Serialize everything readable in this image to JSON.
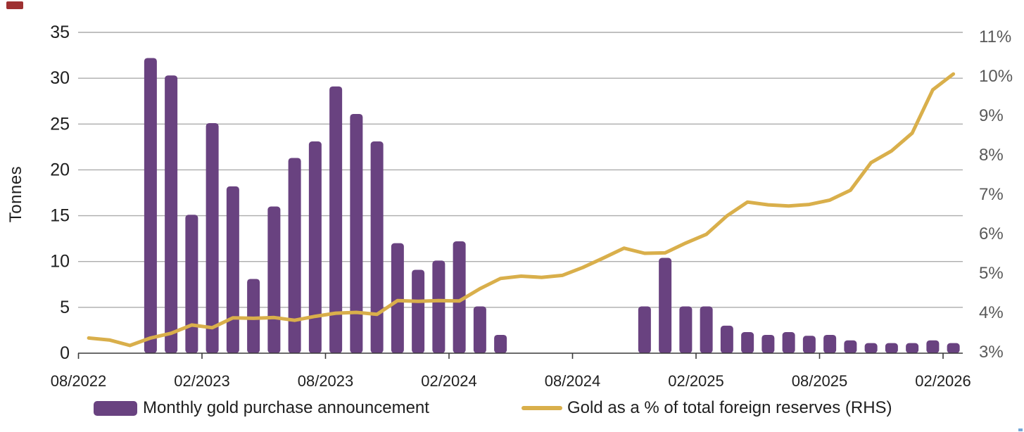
{
  "axes": {
    "left_title": "Tonnes"
  },
  "legend": {
    "bar_label": "Monthly gold purchase announcement",
    "line_label": "Gold as a % of total foreign reserves (RHS)"
  },
  "colors": {
    "bar": "#694280",
    "line": "#D9AF4B",
    "grid": "#ACACAC",
    "axis_line": "#3A3A3A",
    "x_label": "#1f1f1f",
    "left_label": "#1f1f1f",
    "right_label": "#595959",
    "top_left_mark": "#9E3132",
    "corner_artifact": "#74A7D8",
    "background": "#ffffff"
  },
  "chart_data": {
    "type": "combo",
    "subtypes": [
      "bar",
      "line"
    ],
    "grid": "horizontal",
    "legend_position": "bottom",
    "x_axis": {
      "unit": "month",
      "range": [
        "08/2022",
        "02/2026"
      ],
      "tick_labels": [
        "08/2022",
        "02/2023",
        "08/2023",
        "02/2024",
        "08/2024",
        "02/2025",
        "08/2025",
        "02/2026"
      ]
    },
    "left_axis": {
      "title": "Tonnes",
      "min": 0,
      "max": 35,
      "tick_step": 5,
      "tick_labels": [
        "0",
        "5",
        "10",
        "15",
        "20",
        "25",
        "30",
        "35"
      ]
    },
    "right_axis": {
      "unit": "percent",
      "min": 3,
      "max": 11,
      "tick_step": 1,
      "tick_labels": [
        "3%",
        "4%",
        "5%",
        "6%",
        "7%",
        "8%",
        "9%",
        "10%",
        "11%"
      ]
    },
    "series": [
      {
        "name": "Monthly gold purchase announcement",
        "type": "bar",
        "axis": "left",
        "unit": "tonnes",
        "color": "#694280",
        "points": [
          [
            "11/2022",
            32.2
          ],
          [
            "12/2022",
            30.3
          ],
          [
            "01/2023",
            15.1
          ],
          [
            "02/2023",
            25.1
          ],
          [
            "03/2023",
            18.2
          ],
          [
            "04/2023",
            8.1
          ],
          [
            "05/2023",
            16.0
          ],
          [
            "06/2023",
            21.3
          ],
          [
            "07/2023",
            23.1
          ],
          [
            "08/2023",
            29.1
          ],
          [
            "09/2023",
            26.1
          ],
          [
            "10/2023",
            23.1
          ],
          [
            "11/2023",
            12.0
          ],
          [
            "12/2023",
            9.1
          ],
          [
            "01/2024",
            10.1
          ],
          [
            "02/2024",
            12.2
          ],
          [
            "03/2024",
            5.1
          ],
          [
            "04/2024",
            2.0
          ],
          [
            "11/2024",
            5.1
          ],
          [
            "12/2024",
            10.4
          ],
          [
            "01/2025",
            5.1
          ],
          [
            "02/2025",
            5.1
          ],
          [
            "03/2025",
            3.0
          ],
          [
            "04/2025",
            2.3
          ],
          [
            "05/2025",
            2.0
          ],
          [
            "06/2025",
            2.3
          ],
          [
            "07/2025",
            1.9
          ],
          [
            "08/2025",
            2.0
          ],
          [
            "09/2025",
            1.4
          ],
          [
            "10/2025",
            1.1
          ],
          [
            "11/2025",
            1.1
          ],
          [
            "12/2025",
            1.1
          ],
          [
            "01/2026",
            1.4
          ],
          [
            "02/2026",
            1.1
          ]
        ]
      },
      {
        "name": "Gold as a % of total foreign reserves (RHS)",
        "type": "line",
        "axis": "right",
        "unit": "percent",
        "color": "#D9AF4B",
        "points": [
          [
            "08/2022",
            3.35
          ],
          [
            "09/2022",
            3.3
          ],
          [
            "10/2022",
            3.16
          ],
          [
            "11/2022",
            3.35
          ],
          [
            "12/2022",
            3.47
          ],
          [
            "01/2023",
            3.68
          ],
          [
            "02/2023",
            3.61
          ],
          [
            "03/2023",
            3.86
          ],
          [
            "04/2023",
            3.85
          ],
          [
            "05/2023",
            3.87
          ],
          [
            "06/2023",
            3.8
          ],
          [
            "07/2023",
            3.9
          ],
          [
            "08/2023",
            3.98
          ],
          [
            "09/2023",
            4.0
          ],
          [
            "10/2023",
            3.95
          ],
          [
            "11/2023",
            4.3
          ],
          [
            "12/2023",
            4.28
          ],
          [
            "01/2024",
            4.3
          ],
          [
            "02/2024",
            4.29
          ],
          [
            "03/2024",
            4.6
          ],
          [
            "04/2024",
            4.86
          ],
          [
            "05/2024",
            4.92
          ],
          [
            "06/2024",
            4.89
          ],
          [
            "07/2024",
            4.94
          ],
          [
            "08/2024",
            5.14
          ],
          [
            "09/2024",
            5.38
          ],
          [
            "10/2024",
            5.63
          ],
          [
            "11/2024",
            5.5
          ],
          [
            "12/2024",
            5.51
          ],
          [
            "01/2025",
            5.76
          ],
          [
            "02/2025",
            5.98
          ],
          [
            "03/2025",
            6.45
          ],
          [
            "04/2025",
            6.8
          ],
          [
            "05/2025",
            6.73
          ],
          [
            "06/2025",
            6.7
          ],
          [
            "07/2025",
            6.74
          ],
          [
            "08/2025",
            6.85
          ],
          [
            "09/2025",
            7.1
          ],
          [
            "10/2025",
            7.8
          ],
          [
            "11/2025",
            8.1
          ],
          [
            "12/2025",
            8.55
          ],
          [
            "01/2026",
            9.65
          ],
          [
            "02/2026",
            10.05
          ]
        ]
      }
    ]
  }
}
